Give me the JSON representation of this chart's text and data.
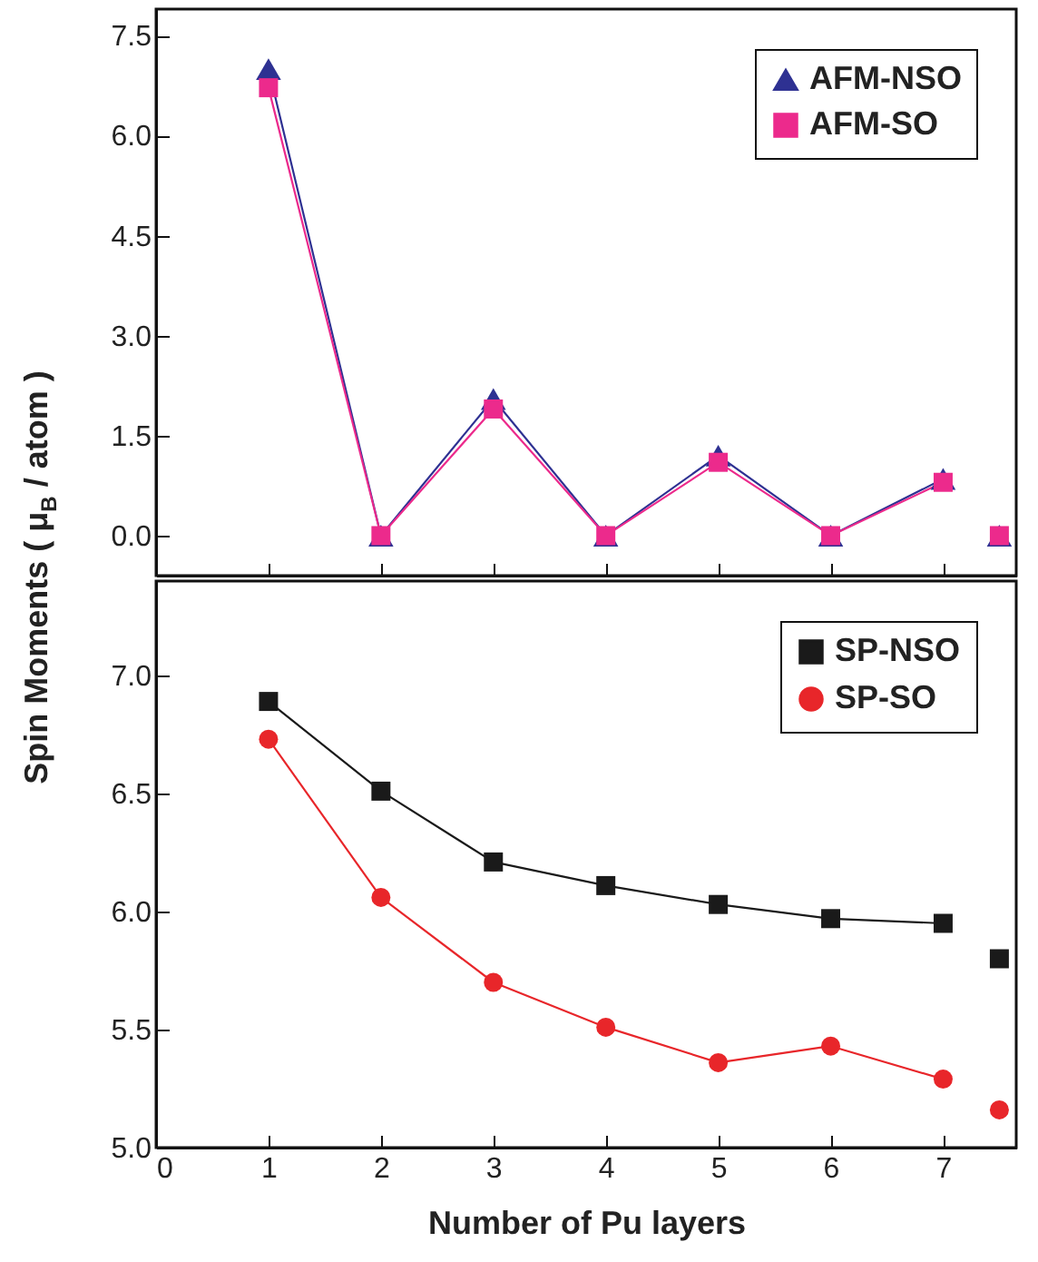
{
  "chart_data": [
    {
      "type": "line",
      "ylabel": "Spin Moments ( μ$_{B}$ / atom )",
      "xlim": [
        0,
        7.65
      ],
      "xticks": [
        0,
        1,
        2,
        3,
        4,
        5,
        6,
        7
      ],
      "ylim": [
        -0.6,
        7.9
      ],
      "yticks": [
        {
          "value": 0,
          "label": "0.0"
        },
        1.5,
        {
          "value": 3,
          "label": "3.0"
        },
        4.5,
        {
          "value": 6,
          "label": "6.0"
        },
        7.5
      ],
      "tick_labels": "y",
      "legend": "top right",
      "series": [
        {
          "name": "AFM-NSO",
          "color": "#2e3192",
          "marker": "triangle",
          "x": [
            1,
            2,
            3,
            4,
            5,
            6,
            7
          ],
          "values": [
            7.0,
            0.0,
            2.05,
            0.0,
            1.2,
            0.0,
            0.85
          ]
        },
        {
          "name": "AFM-SO",
          "color": "#ec2a8c",
          "marker": "square",
          "x": [
            1,
            2,
            3,
            4,
            5,
            6,
            7
          ],
          "values": [
            6.72,
            0.0,
            1.9,
            0.0,
            1.1,
            0.0,
            0.8
          ]
        },
        {
          "type": "scatter",
          "color": "#2e3192",
          "marker": "triangle",
          "x": [
            7.5
          ],
          "values": [
            0.0
          ]
        },
        {
          "type": "scatter",
          "color": "#ec2a8c",
          "marker": "square",
          "x": [
            7.5
          ],
          "values": [
            0.0
          ]
        }
      ]
    },
    {
      "type": "line",
      "xlabel": "Number of Pu layers",
      "xlim": [
        0,
        7.65
      ],
      "xticks": [
        0,
        1,
        2,
        3,
        4,
        5,
        6,
        7
      ],
      "ylim": [
        5.0,
        7.4
      ],
      "yticks": [
        {
          "value": 5,
          "label": "5.0"
        },
        5.5,
        {
          "value": 6,
          "label": "6.0"
        },
        6.5,
        {
          "value": 7,
          "label": "7.0"
        }
      ],
      "legend": "top right",
      "series": [
        {
          "name": "SP-NSO",
          "color": "#1a1a1a",
          "marker": "square",
          "x": [
            1,
            2,
            3,
            4,
            5,
            6,
            7
          ],
          "values": [
            6.89,
            6.51,
            6.21,
            6.11,
            6.03,
            5.97,
            5.95
          ]
        },
        {
          "name": "SP-SO",
          "color": "#e8262a",
          "marker": "circle",
          "x": [
            1,
            2,
            3,
            4,
            5,
            6,
            7
          ],
          "values": [
            6.73,
            6.06,
            5.7,
            5.51,
            5.36,
            5.43,
            5.29
          ]
        },
        {
          "type": "scatter",
          "color": "#1a1a1a",
          "marker": "square",
          "x": [
            7.5
          ],
          "values": [
            5.8
          ]
        },
        {
          "type": "scatter",
          "color": "#e8262a",
          "marker": "circle",
          "x": [
            7.5
          ],
          "values": [
            5.16
          ]
        }
      ]
    }
  ]
}
